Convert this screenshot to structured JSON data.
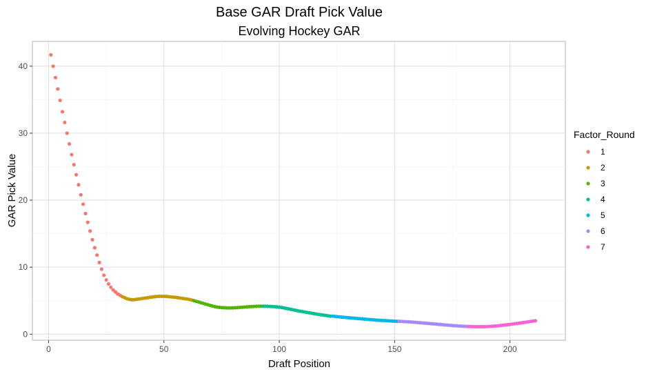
{
  "chart_data": {
    "type": "scatter",
    "title": "Base GAR Draft Pick Value",
    "subtitle": "Evolving Hockey GAR",
    "xlabel": "Draft Position",
    "ylabel": "GAR Pick Value",
    "xlim": [
      -7,
      224
    ],
    "ylim": [
      -0.9,
      43.7
    ],
    "x_ticks": [
      0,
      50,
      100,
      150,
      200
    ],
    "x_tick_labels": [
      "0",
      "50",
      "100",
      "150",
      "200"
    ],
    "y_ticks": [
      0,
      10,
      20,
      30,
      40
    ],
    "y_tick_labels": [
      "0",
      "10",
      "20",
      "30",
      "40"
    ],
    "grid": true,
    "legend": {
      "title": "Factor_Round",
      "placement": "right",
      "entries": [
        "1",
        "2",
        "3",
        "4",
        "5",
        "6",
        "7"
      ]
    },
    "series": [
      {
        "name": "1",
        "color": "#F8766D",
        "x_range": [
          1,
          31
        ],
        "y": [
          41.7,
          40.0,
          38.3,
          36.6,
          34.9,
          33.2,
          31.6,
          30.0,
          28.4,
          26.8,
          25.3,
          23.8,
          22.3,
          20.8,
          19.4,
          18.0,
          16.7,
          15.4,
          14.1,
          12.9,
          11.8,
          10.7,
          9.7,
          8.8,
          8.1,
          7.5,
          7.0,
          6.6,
          6.3,
          6.0,
          5.8
        ]
      },
      {
        "name": "2",
        "color": "#C49A00",
        "x_range": [
          32,
          62
        ],
        "y": [
          5.6,
          5.45,
          5.3,
          5.2,
          5.15,
          5.15,
          5.2,
          5.25,
          5.3,
          5.35,
          5.4,
          5.45,
          5.5,
          5.55,
          5.6,
          5.63,
          5.65,
          5.65,
          5.65,
          5.63,
          5.6,
          5.57,
          5.53,
          5.5,
          5.45,
          5.4,
          5.35,
          5.3,
          5.25,
          5.18,
          5.1
        ]
      },
      {
        "name": "3",
        "color": "#53B400",
        "x_range": [
          63,
          92
        ],
        "y": [
          5.0,
          4.9,
          4.8,
          4.7,
          4.6,
          4.5,
          4.4,
          4.3,
          4.2,
          4.12,
          4.05,
          4.0,
          3.97,
          3.95,
          3.93,
          3.92,
          3.92,
          3.93,
          3.95,
          3.97,
          4.0,
          4.02,
          4.05,
          4.07,
          4.1,
          4.12,
          4.14,
          4.16,
          4.17,
          4.18
        ]
      },
      {
        "name": "4",
        "color": "#00C094",
        "x_range": [
          93,
          122
        ],
        "y": [
          4.18,
          4.17,
          4.16,
          4.14,
          4.12,
          4.1,
          4.07,
          4.03,
          3.98,
          3.92,
          3.85,
          3.78,
          3.71,
          3.64,
          3.57,
          3.5,
          3.43,
          3.37,
          3.31,
          3.25,
          3.19,
          3.13,
          3.07,
          3.01,
          2.95,
          2.9,
          2.85,
          2.8,
          2.75,
          2.7
        ]
      },
      {
        "name": "5",
        "color": "#00B6EB",
        "x_range": [
          123,
          151
        ],
        "y": [
          2.7,
          2.66,
          2.62,
          2.58,
          2.55,
          2.52,
          2.49,
          2.46,
          2.43,
          2.4,
          2.37,
          2.34,
          2.31,
          2.28,
          2.25,
          2.22,
          2.19,
          2.16,
          2.13,
          2.1,
          2.08,
          2.06,
          2.04,
          2.02,
          2.0,
          1.98,
          1.96,
          1.94,
          1.92
        ]
      },
      {
        "name": "6",
        "color": "#A58AFF",
        "x_range": [
          152,
          181
        ],
        "y": [
          1.92,
          1.9,
          1.88,
          1.86,
          1.84,
          1.82,
          1.8,
          1.77,
          1.74,
          1.71,
          1.68,
          1.65,
          1.62,
          1.59,
          1.56,
          1.53,
          1.5,
          1.47,
          1.44,
          1.41,
          1.38,
          1.35,
          1.32,
          1.29,
          1.26,
          1.24,
          1.22,
          1.2,
          1.18,
          1.16
        ]
      },
      {
        "name": "7",
        "color": "#FB61D7",
        "x_range": [
          182,
          211
        ],
        "y": [
          1.15,
          1.14,
          1.13,
          1.12,
          1.12,
          1.12,
          1.12,
          1.13,
          1.14,
          1.16,
          1.18,
          1.2,
          1.23,
          1.26,
          1.3,
          1.34,
          1.38,
          1.42,
          1.46,
          1.5,
          1.55,
          1.6,
          1.65,
          1.7,
          1.75,
          1.8,
          1.85,
          1.9,
          1.95,
          2.0
        ]
      }
    ]
  }
}
